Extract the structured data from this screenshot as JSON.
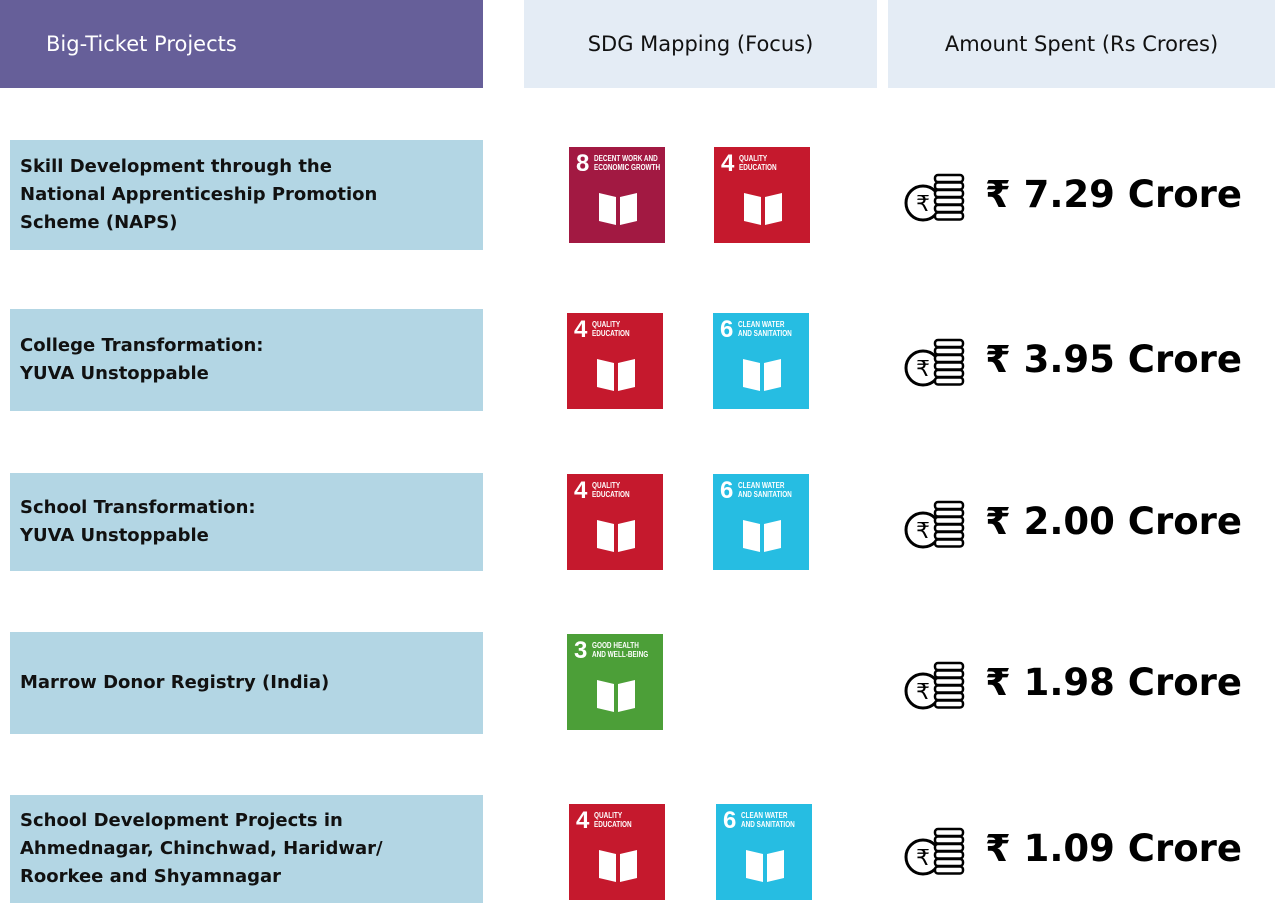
{
  "header": {
    "projects": "Big-Ticket Projects",
    "sdg": "SDG Mapping (Focus)",
    "amount": "Amount Spent (Rs Crores)"
  },
  "rows": [
    {
      "project": [
        "Skill Development through the",
        "National Apprenticeship Promotion",
        "Scheme (NAPS)"
      ],
      "sdgs": [
        {
          "number": "8",
          "label": [
            "DECENT WORK AND",
            "ECONOMIC GROWTH"
          ],
          "color": "#a21942"
        },
        {
          "number": "4",
          "label": [
            "QUALITY",
            "EDUCATION"
          ],
          "color": "#c5192d"
        }
      ],
      "amount": "₹ 7.29 Crore"
    },
    {
      "project": [
        "College Transformation:",
        "YUVA Unstoppable"
      ],
      "sdgs": [
        {
          "number": "4",
          "label": [
            "QUALITY",
            "EDUCATION"
          ],
          "color": "#c5192d"
        },
        {
          "number": "6",
          "label": [
            "CLEAN WATER",
            "AND SANITATION"
          ],
          "color": "#26bde2"
        }
      ],
      "amount": "₹ 3.95 Crore"
    },
    {
      "project": [
        "School Transformation:",
        "YUVA Unstoppable"
      ],
      "sdgs": [
        {
          "number": "4",
          "label": [
            "QUALITY",
            "EDUCATION"
          ],
          "color": "#c5192d"
        },
        {
          "number": "6",
          "label": [
            "CLEAN WATER",
            "AND SANITATION"
          ],
          "color": "#26bde2"
        }
      ],
      "amount": "₹ 2.00 Crore"
    },
    {
      "project": [
        "Marrow Donor Registry (India)"
      ],
      "sdgs": [
        {
          "number": "3",
          "label": [
            "GOOD HEALTH",
            "AND WELL-BEING"
          ],
          "color": "#4c9f38"
        }
      ],
      "amount": "₹ 1.98 Crore"
    },
    {
      "project": [
        "School Development Projects in",
        "Ahmednagar, Chinchwad, Haridwar/",
        "Roorkee and Shyamnagar"
      ],
      "sdgs": [
        {
          "number": "4",
          "label": [
            "QUALITY",
            "EDUCATION"
          ],
          "color": "#c5192d"
        },
        {
          "number": "6",
          "label": [
            "CLEAN WATER",
            "AND SANITATION"
          ],
          "color": "#26bde2"
        }
      ],
      "amount": "₹ 1.09 Crore"
    }
  ]
}
